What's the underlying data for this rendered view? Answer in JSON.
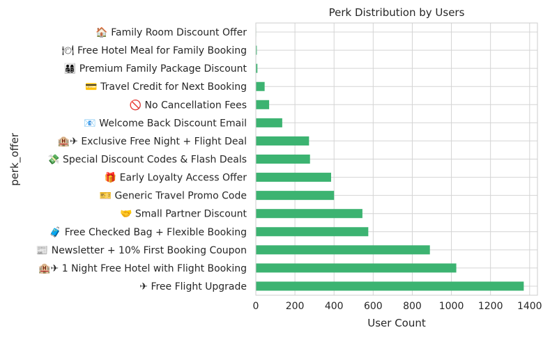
{
  "chart_data": {
    "type": "bar",
    "orientation": "horizontal",
    "title": "Perk Distribution by Users",
    "xlabel": "User Count",
    "ylabel": "perk_offer",
    "xlim": [
      0,
      1440
    ],
    "xticks": [
      0,
      200,
      400,
      600,
      800,
      1000,
      1200,
      1400
    ],
    "grid": true,
    "bar_color": "#3cb371",
    "categories": [
      "✈ Free Flight Upgrade",
      "🏨✈ 1 Night Free Hotel with Flight Booking",
      "📰 Newsletter + 10% First Booking Coupon",
      "🧳 Free Checked Bag + Flexible Booking",
      "🤝 Small Partner Discount",
      "🎫 Generic Travel Promo Code",
      "🎁 Early Loyalty Access Offer",
      "💸 Special Discount Codes & Flash Deals",
      "🏨✈ Exclusive Free Night + Flight Deal",
      "📧 Welcome Back Discount Email",
      "🚫 No Cancellation Fees",
      "💳 Travel Credit for Next Booking",
      "👨‍👩‍👧‍👦 Premium Family Package Discount",
      "🍽 Free Hotel Meal for Family Booking",
      "🏠 Family Room Discount Offer"
    ],
    "values": [
      1370,
      1025,
      890,
      575,
      545,
      400,
      385,
      277,
      272,
      135,
      68,
      45,
      8,
      5,
      2
    ]
  }
}
